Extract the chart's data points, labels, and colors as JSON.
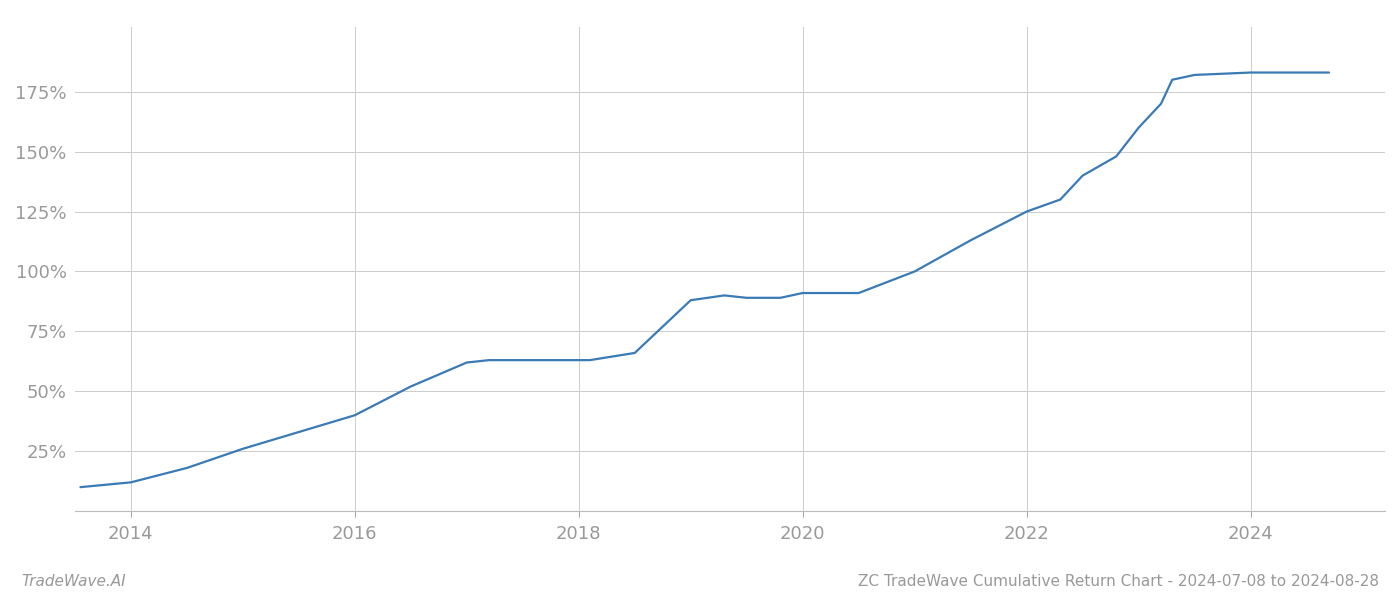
{
  "title": "ZC TradeWave Cumulative Return Chart - 2024-07-08 to 2024-08-28",
  "watermark": "TradeWave.AI",
  "line_color": "#3a7ab5",
  "background_color": "#ffffff",
  "grid_color": "#cccccc",
  "x_years": [
    2013.55,
    2014.0,
    2014.5,
    2015.0,
    2015.5,
    2016.0,
    2016.5,
    2017.0,
    2017.2,
    2017.5,
    2018.0,
    2018.1,
    2018.5,
    2019.0,
    2019.3,
    2019.5,
    2019.8,
    2020.0,
    2020.2,
    2020.5,
    2021.0,
    2021.5,
    2022.0,
    2022.3,
    2022.5,
    2022.8,
    2023.0,
    2023.2,
    2023.3,
    2023.5,
    2024.0,
    2024.5,
    2024.7
  ],
  "y_values": [
    10,
    12,
    18,
    26,
    33,
    40,
    52,
    62,
    63,
    63,
    63,
    63,
    66,
    88,
    90,
    89,
    89,
    91,
    91,
    91,
    100,
    113,
    125,
    130,
    140,
    148,
    160,
    170,
    180,
    182,
    183,
    183,
    183
  ],
  "xlim": [
    2013.5,
    2025.2
  ],
  "ylim": [
    0,
    202
  ],
  "yticks": [
    25,
    50,
    75,
    100,
    125,
    150,
    175
  ],
  "xticks": [
    2014,
    2016,
    2018,
    2020,
    2022,
    2024
  ],
  "tick_label_color": "#999999",
  "tick_fontsize": 13,
  "title_fontsize": 11,
  "watermark_fontsize": 11,
  "line_width": 1.6
}
